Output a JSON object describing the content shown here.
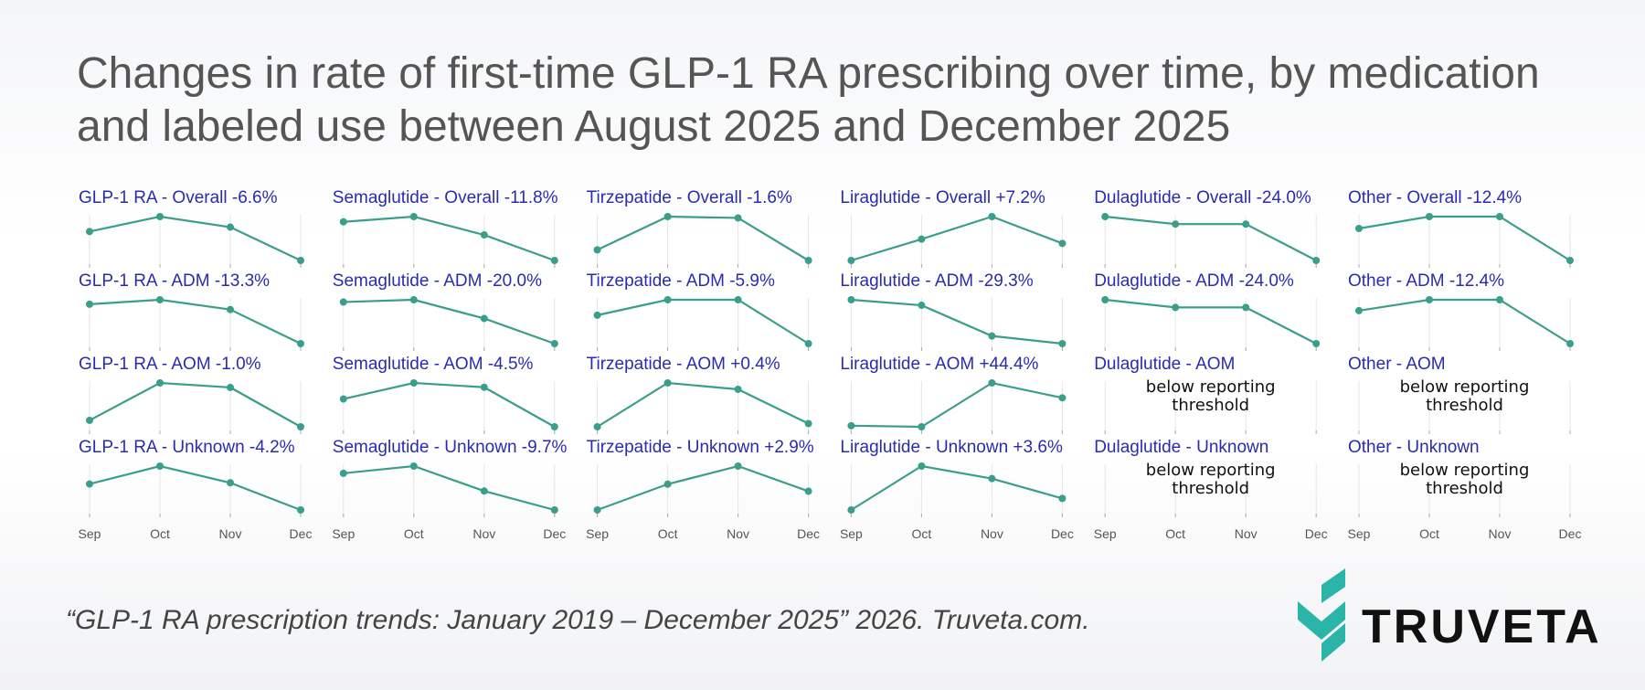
{
  "chart_data": {
    "type": "line",
    "title": "Changes in rate of first-time GLP-1 RA prescribing over time, by medication and labeled use between August 2025 and December 2025",
    "categories": [
      "Sep",
      "Oct",
      "Nov",
      "Dec"
    ],
    "color": "#3a9e8a",
    "grid": true,
    "panels": [
      {
        "title": "GLP-1 RA - Overall -6.6%",
        "values": [
          100,
          103.4,
          101.0,
          93.4
        ]
      },
      {
        "title": "Semaglutide - Overall -11.8%",
        "values": [
          100,
          101.6,
          96.0,
          88.2
        ]
      },
      {
        "title": "Tirzepatide - Overall -1.6%",
        "values": [
          100,
          105.0,
          104.8,
          98.4
        ]
      },
      {
        "title": "Liraglutide - Overall +7.2%",
        "values": [
          100,
          109.0,
          118.5,
          107.2
        ]
      },
      {
        "title": "Dulaglutide - Overall -24.0%",
        "values": [
          100,
          95.9,
          95.9,
          76.0
        ]
      },
      {
        "title": "Other - Overall -12.4%",
        "values": [
          100,
          104.6,
          104.6,
          87.6
        ]
      },
      {
        "title": "GLP-1 RA - ADM -13.3%",
        "values": [
          100,
          101.5,
          98.2,
          86.7
        ]
      },
      {
        "title": "Semaglutide - ADM -20.0%",
        "values": [
          100,
          101.1,
          92.1,
          80.0
        ]
      },
      {
        "title": "Tirzepatide - ADM -5.9%",
        "values": [
          100,
          103.2,
          103.2,
          94.1
        ]
      },
      {
        "title": "Liraglutide - ADM -29.3%",
        "values": [
          100,
          96.3,
          75.8,
          70.7
        ]
      },
      {
        "title": "Dulaglutide - ADM -24.0%",
        "values": [
          100,
          95.8,
          95.8,
          76.0
        ]
      },
      {
        "title": "Other - ADM -12.4%",
        "values": [
          100,
          104.1,
          104.1,
          87.6
        ]
      },
      {
        "title": "GLP-1 RA - AOM -1.0%",
        "values": [
          100,
          105.8,
          105.1,
          99.0
        ]
      },
      {
        "title": "Semaglutide - AOM -4.5%",
        "values": [
          100,
          102.6,
          101.9,
          95.5
        ]
      },
      {
        "title": "Tirzepatide - AOM +0.4%",
        "values": [
          100,
          105.5,
          104.7,
          100.4
        ]
      },
      {
        "title": "Liraglutide - AOM +44.4%",
        "values": [
          100,
          98.3,
          168.2,
          144.4
        ]
      },
      {
        "title": "Dulaglutide - AOM",
        "values": [
          null,
          null,
          null,
          null
        ],
        "note": "below reporting threshold"
      },
      {
        "title": "Other - AOM",
        "values": [
          null,
          null,
          null,
          null
        ],
        "note": "below reporting threshold"
      },
      {
        "title": "GLP-1 RA - Unknown -4.2%",
        "values": [
          100,
          102.9,
          100.2,
          95.8
        ]
      },
      {
        "title": "Semaglutide - Unknown -9.7%",
        "values": [
          100,
          101.9,
          95.3,
          90.3
        ]
      },
      {
        "title": "Tirzepatide - Unknown +2.9%",
        "values": [
          100,
          104.0,
          106.8,
          102.9
        ]
      },
      {
        "title": "Liraglutide - Unknown +3.6%",
        "values": [
          100,
          113.7,
          109.8,
          103.6
        ]
      },
      {
        "title": "Dulaglutide - Unknown",
        "values": [
          null,
          null,
          null,
          null
        ],
        "note": "below reporting threshold"
      },
      {
        "title": "Other - Unknown",
        "values": [
          null,
          null,
          null,
          null
        ],
        "note": "below reporting threshold"
      }
    ]
  },
  "source": "“GLP-1 RA prescription trends: January 2019 – December 2025” 2026. Truveta.com.",
  "logo": "TRUVETA"
}
